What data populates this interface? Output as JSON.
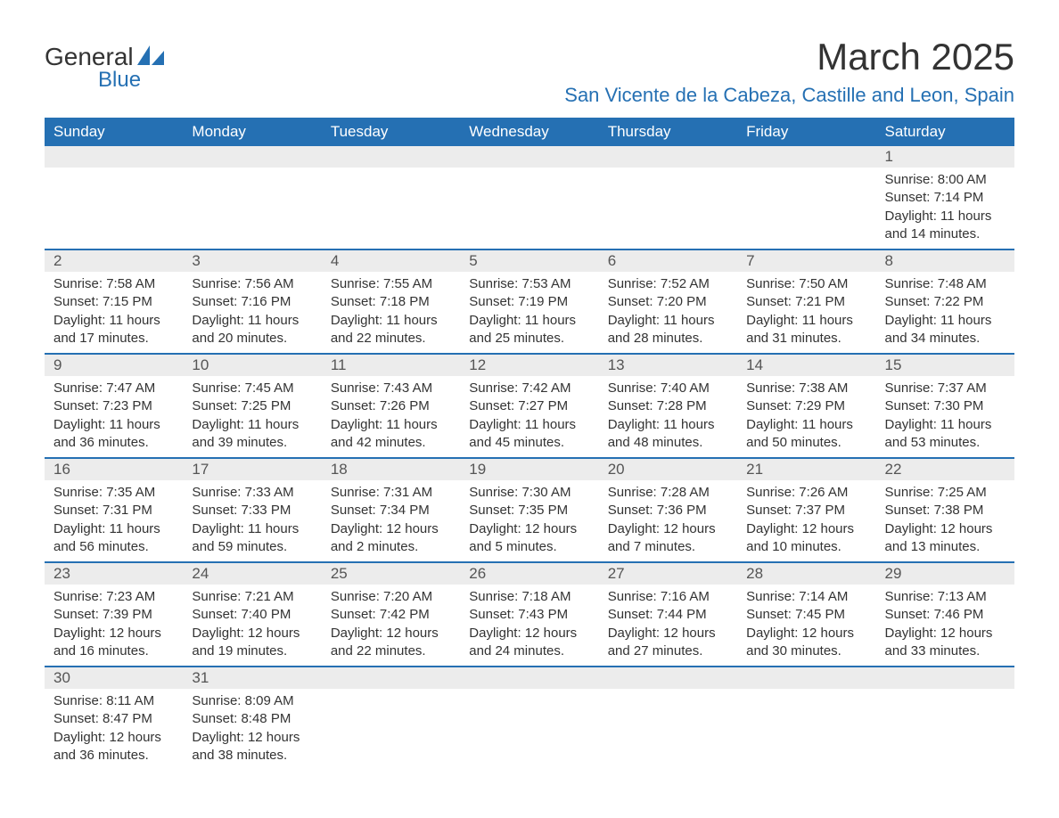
{
  "logo": {
    "text_general": "General",
    "text_blue": "Blue",
    "sail_color": "#2570b3",
    "text_color_dark": "#333333"
  },
  "title": {
    "month": "March 2025",
    "location": "San Vicente de la Cabeza, Castille and Leon, Spain"
  },
  "colors": {
    "header_bg": "#2570b3",
    "header_text": "#ffffff",
    "daybar_bg": "#ececec",
    "border": "#2570b3",
    "body_text": "#333333",
    "page_bg": "#ffffff"
  },
  "typography": {
    "month_fontsize": 42,
    "location_fontsize": 22,
    "weekday_fontsize": 17,
    "daynum_fontsize": 17,
    "body_fontsize": 15
  },
  "weekdays": [
    "Sunday",
    "Monday",
    "Tuesday",
    "Wednesday",
    "Thursday",
    "Friday",
    "Saturday"
  ],
  "weeks": [
    [
      null,
      null,
      null,
      null,
      null,
      null,
      {
        "n": "1",
        "sunrise": "Sunrise: 8:00 AM",
        "sunset": "Sunset: 7:14 PM",
        "daylight1": "Daylight: 11 hours",
        "daylight2": "and 14 minutes."
      }
    ],
    [
      {
        "n": "2",
        "sunrise": "Sunrise: 7:58 AM",
        "sunset": "Sunset: 7:15 PM",
        "daylight1": "Daylight: 11 hours",
        "daylight2": "and 17 minutes."
      },
      {
        "n": "3",
        "sunrise": "Sunrise: 7:56 AM",
        "sunset": "Sunset: 7:16 PM",
        "daylight1": "Daylight: 11 hours",
        "daylight2": "and 20 minutes."
      },
      {
        "n": "4",
        "sunrise": "Sunrise: 7:55 AM",
        "sunset": "Sunset: 7:18 PM",
        "daylight1": "Daylight: 11 hours",
        "daylight2": "and 22 minutes."
      },
      {
        "n": "5",
        "sunrise": "Sunrise: 7:53 AM",
        "sunset": "Sunset: 7:19 PM",
        "daylight1": "Daylight: 11 hours",
        "daylight2": "and 25 minutes."
      },
      {
        "n": "6",
        "sunrise": "Sunrise: 7:52 AM",
        "sunset": "Sunset: 7:20 PM",
        "daylight1": "Daylight: 11 hours",
        "daylight2": "and 28 minutes."
      },
      {
        "n": "7",
        "sunrise": "Sunrise: 7:50 AM",
        "sunset": "Sunset: 7:21 PM",
        "daylight1": "Daylight: 11 hours",
        "daylight2": "and 31 minutes."
      },
      {
        "n": "8",
        "sunrise": "Sunrise: 7:48 AM",
        "sunset": "Sunset: 7:22 PM",
        "daylight1": "Daylight: 11 hours",
        "daylight2": "and 34 minutes."
      }
    ],
    [
      {
        "n": "9",
        "sunrise": "Sunrise: 7:47 AM",
        "sunset": "Sunset: 7:23 PM",
        "daylight1": "Daylight: 11 hours",
        "daylight2": "and 36 minutes."
      },
      {
        "n": "10",
        "sunrise": "Sunrise: 7:45 AM",
        "sunset": "Sunset: 7:25 PM",
        "daylight1": "Daylight: 11 hours",
        "daylight2": "and 39 minutes."
      },
      {
        "n": "11",
        "sunrise": "Sunrise: 7:43 AM",
        "sunset": "Sunset: 7:26 PM",
        "daylight1": "Daylight: 11 hours",
        "daylight2": "and 42 minutes."
      },
      {
        "n": "12",
        "sunrise": "Sunrise: 7:42 AM",
        "sunset": "Sunset: 7:27 PM",
        "daylight1": "Daylight: 11 hours",
        "daylight2": "and 45 minutes."
      },
      {
        "n": "13",
        "sunrise": "Sunrise: 7:40 AM",
        "sunset": "Sunset: 7:28 PM",
        "daylight1": "Daylight: 11 hours",
        "daylight2": "and 48 minutes."
      },
      {
        "n": "14",
        "sunrise": "Sunrise: 7:38 AM",
        "sunset": "Sunset: 7:29 PM",
        "daylight1": "Daylight: 11 hours",
        "daylight2": "and 50 minutes."
      },
      {
        "n": "15",
        "sunrise": "Sunrise: 7:37 AM",
        "sunset": "Sunset: 7:30 PM",
        "daylight1": "Daylight: 11 hours",
        "daylight2": "and 53 minutes."
      }
    ],
    [
      {
        "n": "16",
        "sunrise": "Sunrise: 7:35 AM",
        "sunset": "Sunset: 7:31 PM",
        "daylight1": "Daylight: 11 hours",
        "daylight2": "and 56 minutes."
      },
      {
        "n": "17",
        "sunrise": "Sunrise: 7:33 AM",
        "sunset": "Sunset: 7:33 PM",
        "daylight1": "Daylight: 11 hours",
        "daylight2": "and 59 minutes."
      },
      {
        "n": "18",
        "sunrise": "Sunrise: 7:31 AM",
        "sunset": "Sunset: 7:34 PM",
        "daylight1": "Daylight: 12 hours",
        "daylight2": "and 2 minutes."
      },
      {
        "n": "19",
        "sunrise": "Sunrise: 7:30 AM",
        "sunset": "Sunset: 7:35 PM",
        "daylight1": "Daylight: 12 hours",
        "daylight2": "and 5 minutes."
      },
      {
        "n": "20",
        "sunrise": "Sunrise: 7:28 AM",
        "sunset": "Sunset: 7:36 PM",
        "daylight1": "Daylight: 12 hours",
        "daylight2": "and 7 minutes."
      },
      {
        "n": "21",
        "sunrise": "Sunrise: 7:26 AM",
        "sunset": "Sunset: 7:37 PM",
        "daylight1": "Daylight: 12 hours",
        "daylight2": "and 10 minutes."
      },
      {
        "n": "22",
        "sunrise": "Sunrise: 7:25 AM",
        "sunset": "Sunset: 7:38 PM",
        "daylight1": "Daylight: 12 hours",
        "daylight2": "and 13 minutes."
      }
    ],
    [
      {
        "n": "23",
        "sunrise": "Sunrise: 7:23 AM",
        "sunset": "Sunset: 7:39 PM",
        "daylight1": "Daylight: 12 hours",
        "daylight2": "and 16 minutes."
      },
      {
        "n": "24",
        "sunrise": "Sunrise: 7:21 AM",
        "sunset": "Sunset: 7:40 PM",
        "daylight1": "Daylight: 12 hours",
        "daylight2": "and 19 minutes."
      },
      {
        "n": "25",
        "sunrise": "Sunrise: 7:20 AM",
        "sunset": "Sunset: 7:42 PM",
        "daylight1": "Daylight: 12 hours",
        "daylight2": "and 22 minutes."
      },
      {
        "n": "26",
        "sunrise": "Sunrise: 7:18 AM",
        "sunset": "Sunset: 7:43 PM",
        "daylight1": "Daylight: 12 hours",
        "daylight2": "and 24 minutes."
      },
      {
        "n": "27",
        "sunrise": "Sunrise: 7:16 AM",
        "sunset": "Sunset: 7:44 PM",
        "daylight1": "Daylight: 12 hours",
        "daylight2": "and 27 minutes."
      },
      {
        "n": "28",
        "sunrise": "Sunrise: 7:14 AM",
        "sunset": "Sunset: 7:45 PM",
        "daylight1": "Daylight: 12 hours",
        "daylight2": "and 30 minutes."
      },
      {
        "n": "29",
        "sunrise": "Sunrise: 7:13 AM",
        "sunset": "Sunset: 7:46 PM",
        "daylight1": "Daylight: 12 hours",
        "daylight2": "and 33 minutes."
      }
    ],
    [
      {
        "n": "30",
        "sunrise": "Sunrise: 8:11 AM",
        "sunset": "Sunset: 8:47 PM",
        "daylight1": "Daylight: 12 hours",
        "daylight2": "and 36 minutes."
      },
      {
        "n": "31",
        "sunrise": "Sunrise: 8:09 AM",
        "sunset": "Sunset: 8:48 PM",
        "daylight1": "Daylight: 12 hours",
        "daylight2": "and 38 minutes."
      },
      null,
      null,
      null,
      null,
      null
    ]
  ]
}
